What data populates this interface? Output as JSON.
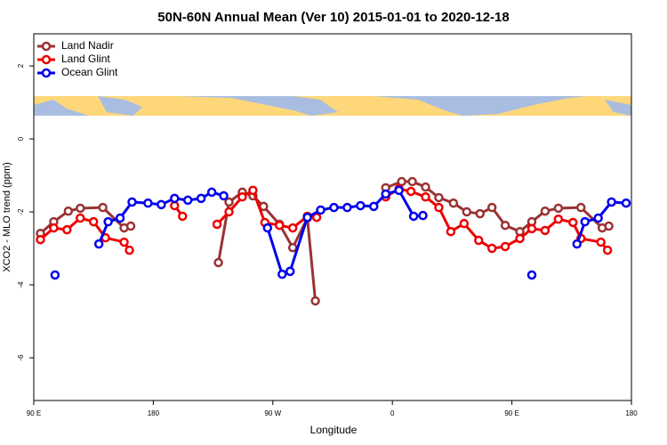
{
  "chart_data": {
    "type": "line",
    "title": "50N-60N Annual Mean (Ver 10)   2015-01-01 to 2020-12-18",
    "x_label": "Longitude",
    "y_label": "XCO2 - MLO trend (ppm)",
    "xlim": [
      90,
      540
    ],
    "ylim": [
      -7.17,
      2.88
    ],
    "xticks": [
      {
        "value": 90,
        "label": "90 E"
      },
      180,
      {
        "value": 270,
        "label": "90 W"
      },
      {
        "value": 360,
        "label": "0"
      },
      {
        "value": 450,
        "label": "90 E"
      },
      {
        "value": 540,
        "label": "180"
      }
    ],
    "yticks": [
      -6,
      -4,
      -2,
      0,
      2
    ],
    "legend": "top-left",
    "series": [
      {
        "name": "Land Nadir",
        "color": "#993333",
        "x": [
          95,
          105,
          116,
          125,
          142,
          158,
          163,
          null,
          229,
          237,
          247,
          255,
          263,
          275,
          285,
          296,
          302,
          null,
          355,
          367,
          375,
          385,
          395,
          406,
          416,
          426,
          435,
          445,
          456,
          465,
          475,
          485,
          502,
          518,
          523
        ],
        "values": [
          -2.59,
          -2.27,
          -1.98,
          -1.9,
          -1.88,
          -2.44,
          -2.39,
          null,
          -3.39,
          -1.73,
          -1.46,
          -1.56,
          -1.85,
          -2.34,
          -2.98,
          -2.17,
          -4.44,
          null,
          -1.34,
          -1.17,
          -1.17,
          -1.32,
          -1.61,
          -1.76,
          -2.0,
          -2.05,
          -1.88,
          -2.37,
          -2.54,
          -2.27,
          -1.98,
          -1.9,
          -1.88,
          -2.44,
          -2.39
        ]
      },
      {
        "name": "Land Glint",
        "color": "#ee0000",
        "x": [
          95,
          105,
          115,
          125,
          135,
          144,
          158,
          162,
          null,
          196,
          202,
          null,
          228,
          237,
          247,
          255,
          264,
          275,
          285,
          296,
          303,
          null,
          355,
          365,
          374,
          385,
          395,
          404,
          414,
          425,
          435,
          445,
          456,
          465,
          475,
          485,
          496,
          502,
          517,
          522
        ],
        "values": [
          -2.76,
          -2.44,
          -2.49,
          -2.17,
          -2.27,
          -2.71,
          -2.83,
          -3.05,
          null,
          -1.83,
          -2.12,
          null,
          -2.34,
          -2.0,
          -1.59,
          -1.41,
          -2.29,
          -2.37,
          -2.44,
          -2.12,
          -2.15,
          null,
          -1.59,
          -1.37,
          -1.44,
          -1.59,
          -1.88,
          -2.54,
          -2.32,
          -2.78,
          -3.0,
          -2.95,
          -2.73,
          -2.46,
          -2.51,
          -2.2,
          -2.29,
          -2.73,
          -2.83,
          -3.05
        ]
      },
      {
        "name": "Ocean Glint",
        "color": "#0000ee",
        "x": [
          106,
          null,
          139,
          146,
          155,
          164,
          176,
          186,
          196,
          206,
          216,
          224,
          233,
          null,
          266,
          277,
          283,
          296,
          306,
          316,
          326,
          336,
          346,
          355,
          365,
          376,
          383,
          null,
          465,
          null,
          499,
          505,
          515,
          525,
          536
        ],
        "values": [
          -3.73,
          null,
          -2.88,
          -2.27,
          -2.17,
          -1.73,
          -1.76,
          -1.8,
          -1.63,
          -1.68,
          -1.63,
          -1.46,
          -1.56,
          null,
          -2.44,
          -3.71,
          -3.63,
          -2.15,
          -1.95,
          -1.88,
          -1.88,
          -1.83,
          -1.85,
          -1.51,
          -1.41,
          -2.12,
          -2.1,
          null,
          -3.73,
          null,
          -2.88,
          -2.27,
          -2.17,
          -1.73,
          -1.76
        ]
      }
    ]
  }
}
